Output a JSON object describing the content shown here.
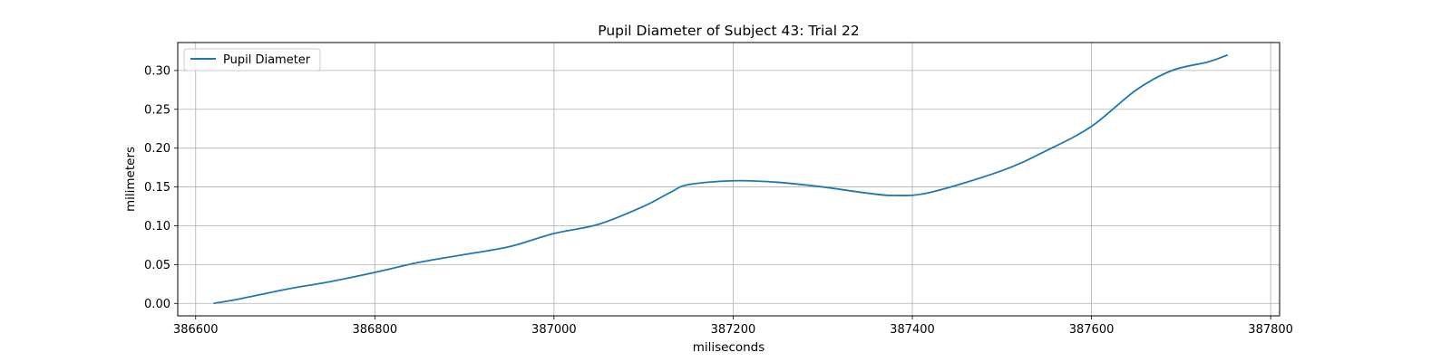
{
  "chart_data": {
    "type": "line",
    "title": "Pupil Diameter of Subject 43: Trial 22",
    "xlabel": "miliseconds",
    "ylabel": "milimeters",
    "xlim": [
      386580,
      387810
    ],
    "ylim": [
      -0.016,
      0.336
    ],
    "x_ticks": [
      386600,
      386800,
      387000,
      387200,
      387400,
      387600,
      387800
    ],
    "x_tick_labels": [
      "386600",
      "386800",
      "387000",
      "387200",
      "387400",
      "387600",
      "387800"
    ],
    "y_ticks": [
      0.0,
      0.05,
      0.1,
      0.15,
      0.2,
      0.25,
      0.3
    ],
    "y_tick_labels": [
      "0.00",
      "0.05",
      "0.10",
      "0.15",
      "0.20",
      "0.25",
      "0.30"
    ],
    "grid": true,
    "legend": {
      "placement": "upper-left",
      "entries": [
        "Pupil Diameter"
      ]
    },
    "series": [
      {
        "name": "Pupil Diameter",
        "color": "#1f77b4",
        "x": [
          386620,
          386650,
          386700,
          386750,
          386800,
          386850,
          386900,
          386950,
          387000,
          387050,
          387100,
          387130,
          387150,
          387200,
          387250,
          387300,
          387350,
          387380,
          387420,
          387500,
          387550,
          387600,
          387650,
          387690,
          387730,
          387752
        ],
        "y": [
          0.0,
          0.006,
          0.018,
          0.028,
          0.04,
          0.053,
          0.063,
          0.073,
          0.09,
          0.102,
          0.125,
          0.143,
          0.153,
          0.158,
          0.156,
          0.15,
          0.142,
          0.139,
          0.143,
          0.171,
          0.197,
          0.228,
          0.275,
          0.3,
          0.311,
          0.32
        ]
      }
    ]
  }
}
